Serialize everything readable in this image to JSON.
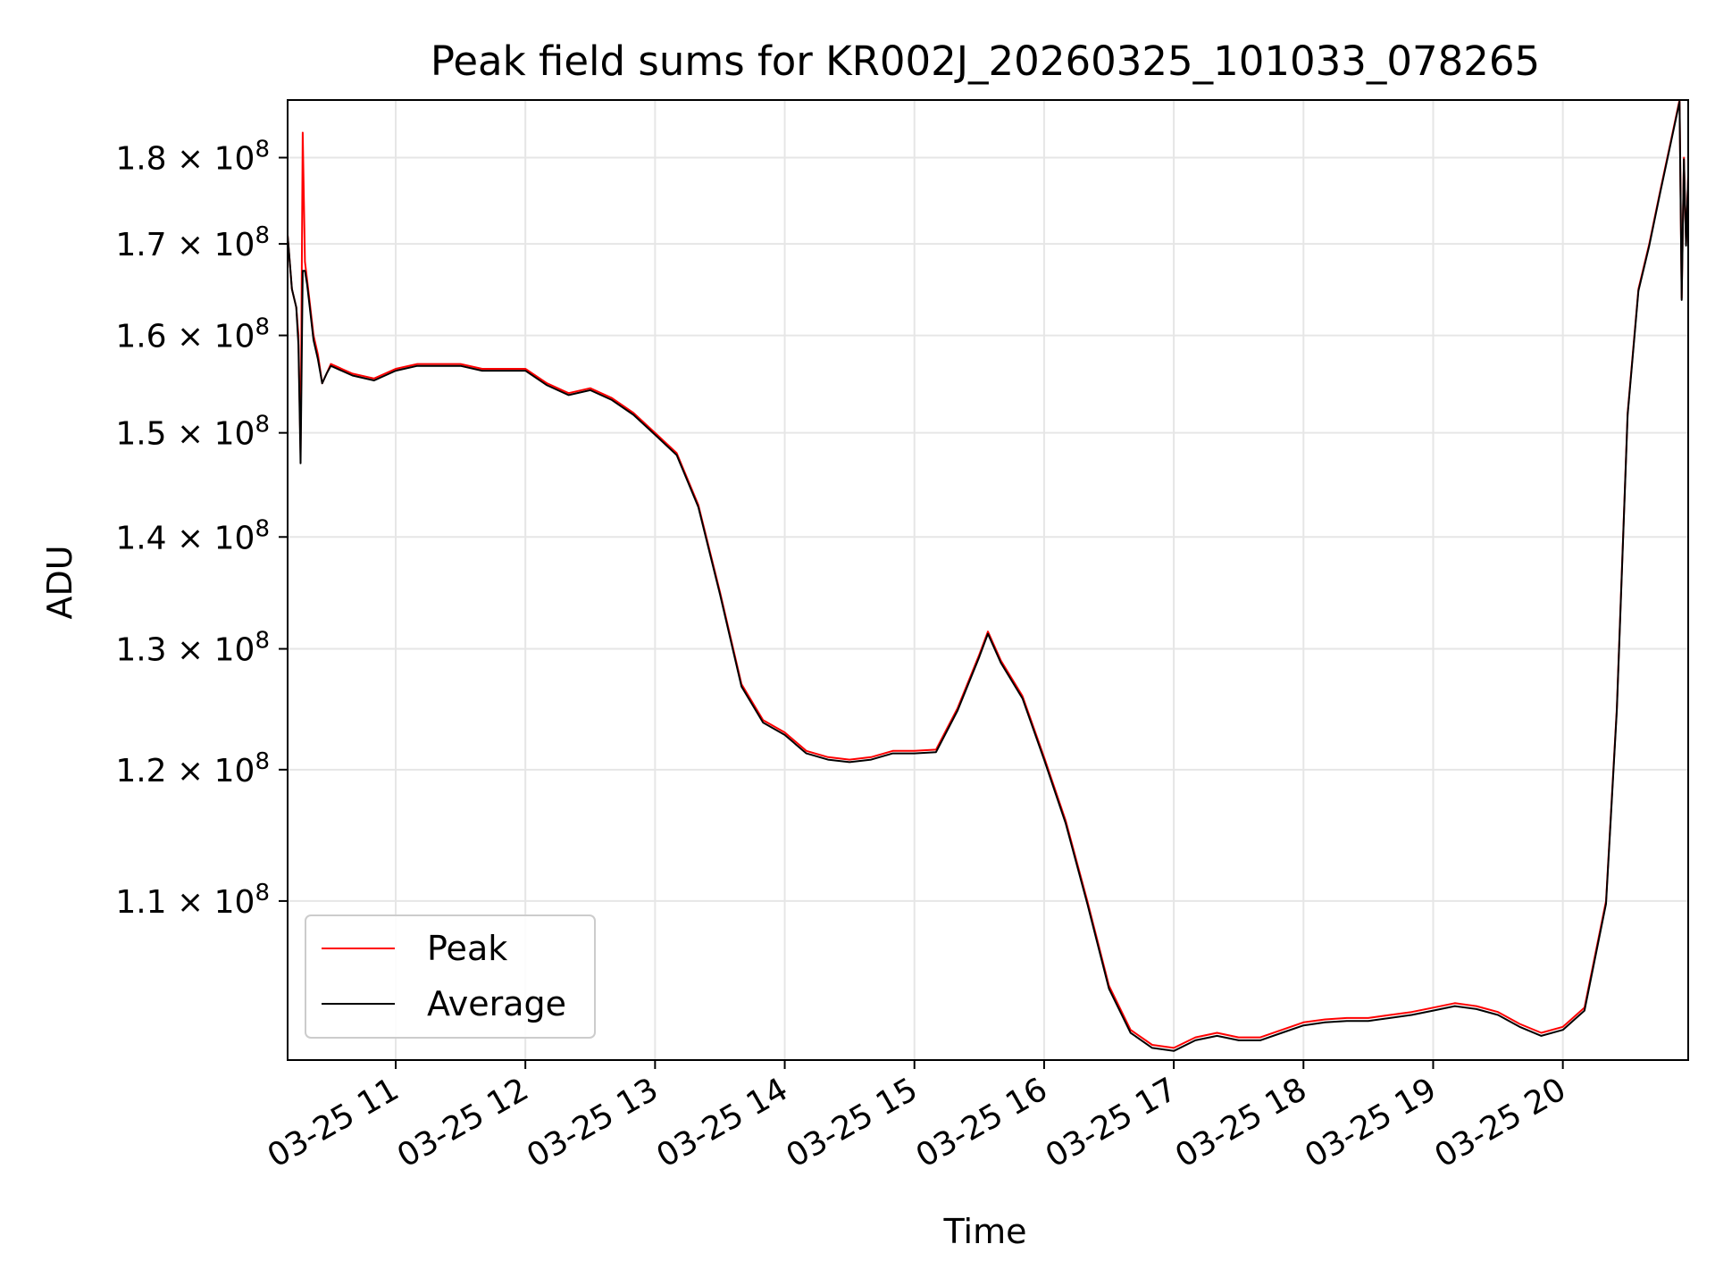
{
  "chart_data": {
    "type": "line",
    "title": "Peak field sums for KR002J_20260325_101033_078265",
    "xlabel": "Time",
    "ylabel": "ADU",
    "yscale": "log",
    "grid": true,
    "legend_position": "lower-left",
    "xlim": [
      "03-25 10:10",
      "03-25 20:58"
    ],
    "ylim": [
      99000000,
      187000000
    ],
    "x_ticks": [
      {
        "value": "03-25 11:00",
        "label": "03-25 11"
      },
      {
        "value": "03-25 12:00",
        "label": "03-25 12"
      },
      {
        "value": "03-25 13:00",
        "label": "03-25 13"
      },
      {
        "value": "03-25 14:00",
        "label": "03-25 14"
      },
      {
        "value": "03-25 15:00",
        "label": "03-25 15"
      },
      {
        "value": "03-25 16:00",
        "label": "03-25 16"
      },
      {
        "value": "03-25 17:00",
        "label": "03-25 17"
      },
      {
        "value": "03-25 18:00",
        "label": "03-25 18"
      },
      {
        "value": "03-25 19:00",
        "label": "03-25 19"
      },
      {
        "value": "03-25 20:00",
        "label": "03-25 20"
      }
    ],
    "y_ticks": [
      {
        "value": 110000000,
        "mantissa": "1.1",
        "exponent": "8"
      },
      {
        "value": 120000000,
        "mantissa": "1.2",
        "exponent": "8"
      },
      {
        "value": 130000000,
        "mantissa": "1.3",
        "exponent": "8"
      },
      {
        "value": 140000000,
        "mantissa": "1.4",
        "exponent": "8"
      },
      {
        "value": 150000000,
        "mantissa": "1.5",
        "exponent": "8"
      },
      {
        "value": 160000000,
        "mantissa": "1.6",
        "exponent": "8"
      },
      {
        "value": 170000000,
        "mantissa": "1.7",
        "exponent": "8"
      },
      {
        "value": 180000000,
        "mantissa": "1.8",
        "exponent": "8"
      }
    ],
    "series": [
      {
        "name": "Peak",
        "color": "#ff0000",
        "x": [
          "03-25 10:10",
          "03-25 10:12",
          "03-25 10:14",
          "03-25 10:15",
          "03-25 10:16",
          "03-25 10:17",
          "03-25 10:18",
          "03-25 10:19",
          "03-25 10:20",
          "03-25 10:22",
          "03-25 10:24",
          "03-25 10:26",
          "03-25 10:28",
          "03-25 10:30",
          "03-25 10:35",
          "03-25 10:40",
          "03-25 10:50",
          "03-25 11:00",
          "03-25 11:10",
          "03-25 11:20",
          "03-25 11:30",
          "03-25 11:40",
          "03-25 11:50",
          "03-25 12:00",
          "03-25 12:10",
          "03-25 12:20",
          "03-25 12:30",
          "03-25 12:40",
          "03-25 12:50",
          "03-25 13:00",
          "03-25 13:10",
          "03-25 13:20",
          "03-25 13:30",
          "03-25 13:40",
          "03-25 13:50",
          "03-25 14:00",
          "03-25 14:10",
          "03-25 14:20",
          "03-25 14:30",
          "03-25 14:40",
          "03-25 14:50",
          "03-25 15:00",
          "03-25 15:10",
          "03-25 15:20",
          "03-25 15:30",
          "03-25 15:34",
          "03-25 15:40",
          "03-25 15:50",
          "03-25 16:00",
          "03-25 16:10",
          "03-25 16:20",
          "03-25 16:30",
          "03-25 16:40",
          "03-25 16:50",
          "03-25 17:00",
          "03-25 17:10",
          "03-25 17:20",
          "03-25 17:30",
          "03-25 17:40",
          "03-25 17:50",
          "03-25 18:00",
          "03-25 18:10",
          "03-25 18:20",
          "03-25 18:30",
          "03-25 18:40",
          "03-25 18:50",
          "03-25 19:00",
          "03-25 19:10",
          "03-25 19:20",
          "03-25 19:30",
          "03-25 19:40",
          "03-25 19:50",
          "03-25 20:00",
          "03-25 20:10",
          "03-25 20:20",
          "03-25 20:25",
          "03-25 20:30",
          "03-25 20:35",
          "03-25 20:40",
          "03-25 20:45",
          "03-25 20:50",
          "03-25 20:54",
          "03-25 20:55",
          "03-25 20:56",
          "03-25 20:57",
          "03-25 20:58"
        ],
        "values": [
          171000000,
          165000000,
          163000000,
          160000000,
          148000000,
          183000000,
          168000000,
          166000000,
          164000000,
          160000000,
          158000000,
          155000000,
          156000000,
          157000000,
          156500000,
          156000000,
          155500000,
          156500000,
          157000000,
          157000000,
          157000000,
          156500000,
          156500000,
          156500000,
          155000000,
          154000000,
          154500000,
          153500000,
          152000000,
          150000000,
          148000000,
          143000000,
          135000000,
          127000000,
          124000000,
          123000000,
          121500000,
          121000000,
          120800000,
          121000000,
          121500000,
          121500000,
          121600000,
          125000000,
          129500000,
          131500000,
          129000000,
          126000000,
          121000000,
          116000000,
          110000000,
          104000000,
          101000000,
          100000000,
          99800000,
          100500000,
          100800000,
          100500000,
          100500000,
          101000000,
          101500000,
          101700000,
          101800000,
          101800000,
          102000000,
          102200000,
          102500000,
          102800000,
          102600000,
          102200000,
          101400000,
          100800000,
          101200000,
          102500000,
          110000000,
          125000000,
          152000000,
          165000000,
          170000000,
          176000000,
          182000000,
          187000000,
          164000000,
          180000000,
          170000000,
          178000000
        ]
      },
      {
        "name": "Average",
        "color": "#000000",
        "x": [
          "03-25 10:10",
          "03-25 10:12",
          "03-25 10:14",
          "03-25 10:15",
          "03-25 10:16",
          "03-25 10:17",
          "03-25 10:18",
          "03-25 10:19",
          "03-25 10:20",
          "03-25 10:22",
          "03-25 10:24",
          "03-25 10:26",
          "03-25 10:28",
          "03-25 10:30",
          "03-25 10:35",
          "03-25 10:40",
          "03-25 10:50",
          "03-25 11:00",
          "03-25 11:10",
          "03-25 11:20",
          "03-25 11:30",
          "03-25 11:40",
          "03-25 11:50",
          "03-25 12:00",
          "03-25 12:10",
          "03-25 12:20",
          "03-25 12:30",
          "03-25 12:40",
          "03-25 12:50",
          "03-25 13:00",
          "03-25 13:10",
          "03-25 13:20",
          "03-25 13:30",
          "03-25 13:40",
          "03-25 13:50",
          "03-25 14:00",
          "03-25 14:10",
          "03-25 14:20",
          "03-25 14:30",
          "03-25 14:40",
          "03-25 14:50",
          "03-25 15:00",
          "03-25 15:10",
          "03-25 15:20",
          "03-25 15:30",
          "03-25 15:34",
          "03-25 15:40",
          "03-25 15:50",
          "03-25 16:00",
          "03-25 16:10",
          "03-25 16:20",
          "03-25 16:30",
          "03-25 16:40",
          "03-25 16:50",
          "03-25 17:00",
          "03-25 17:10",
          "03-25 17:20",
          "03-25 17:30",
          "03-25 17:40",
          "03-25 17:50",
          "03-25 18:00",
          "03-25 18:10",
          "03-25 18:20",
          "03-25 18:30",
          "03-25 18:40",
          "03-25 18:50",
          "03-25 19:00",
          "03-25 19:10",
          "03-25 19:20",
          "03-25 19:30",
          "03-25 19:40",
          "03-25 19:50",
          "03-25 20:00",
          "03-25 20:10",
          "03-25 20:20",
          "03-25 20:25",
          "03-25 20:30",
          "03-25 20:35",
          "03-25 20:40",
          "03-25 20:45",
          "03-25 20:50",
          "03-25 20:54",
          "03-25 20:55",
          "03-25 20:56",
          "03-25 20:57",
          "03-25 20:58"
        ],
        "values": [
          171000000,
          165000000,
          163000000,
          159000000,
          147000000,
          167000000,
          167000000,
          165500000,
          163500000,
          159500000,
          157500000,
          155000000,
          156000000,
          156800000,
          156300000,
          155800000,
          155300000,
          156300000,
          156800000,
          156800000,
          156800000,
          156300000,
          156300000,
          156300000,
          154800000,
          153800000,
          154300000,
          153300000,
          151800000,
          149800000,
          147800000,
          142800000,
          134800000,
          126800000,
          123800000,
          122800000,
          121300000,
          120800000,
          120600000,
          120800000,
          121300000,
          121300000,
          121400000,
          124800000,
          129300000,
          131300000,
          128800000,
          125800000,
          120800000,
          115800000,
          109800000,
          103800000,
          100800000,
          99800000,
          99600000,
          100300000,
          100600000,
          100300000,
          100300000,
          100800000,
          101300000,
          101500000,
          101600000,
          101600000,
          101800000,
          102000000,
          102300000,
          102600000,
          102400000,
          102000000,
          101200000,
          100600000,
          101000000,
          102300000,
          109800000,
          124800000,
          151800000,
          164800000,
          169800000,
          175800000,
          181800000,
          186800000,
          163800000,
          179800000,
          169800000,
          177800000
        ]
      }
    ]
  }
}
